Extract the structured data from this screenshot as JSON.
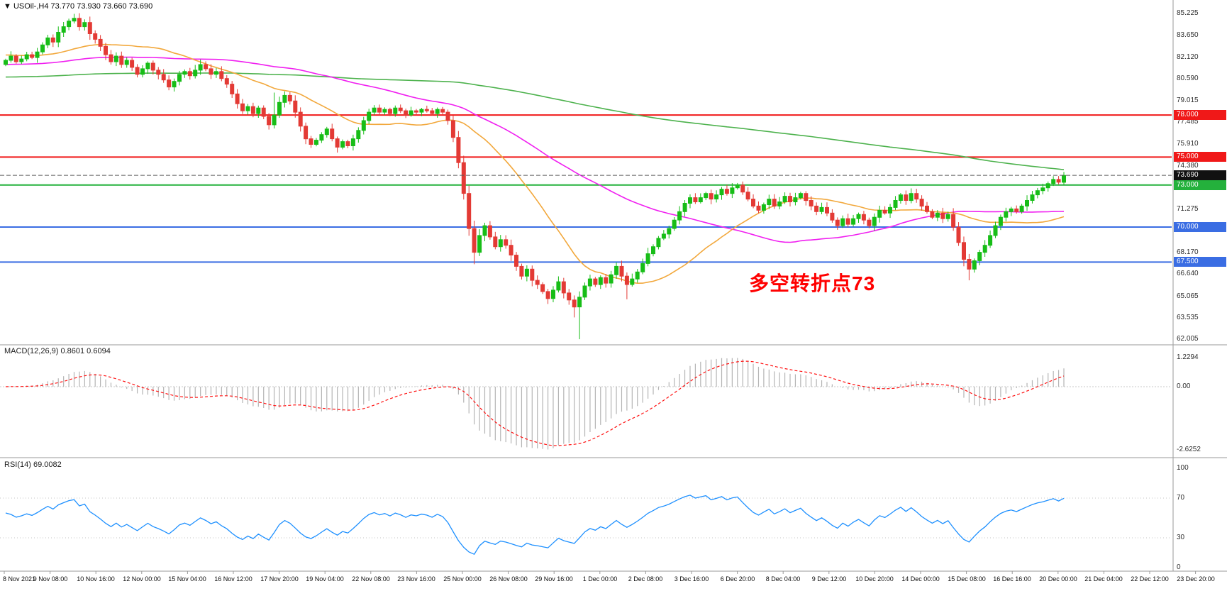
{
  "window": {
    "icon": "▼",
    "title": "USOil-,H4 73.770 73.930 73.660 73.690"
  },
  "indicators": {
    "macd_title": "MACD(12,26,9) 0.8601 0.6094",
    "rsi_title": "RSI(14) 69.0082"
  },
  "annotation": {
    "text": "多空转折点73",
    "color": "#ff0000"
  },
  "chart_data": {
    "type": "candlestick",
    "symbol": "USOil",
    "timeframe": "H4",
    "title": "USOil-,H4 73.770 73.930 73.660 73.690",
    "bull_color": "#17bd17",
    "bear_color": "#e33a35",
    "first_open": 81.6,
    "closes": [
      81.9,
      82.2,
      81.8,
      82.0,
      82.3,
      82.1,
      82.5,
      83.0,
      83.5,
      83.2,
      83.9,
      84.3,
      84.7,
      84.9,
      84.3,
      84.6,
      83.8,
      83.4,
      82.9,
      82.3,
      81.8,
      82.2,
      81.6,
      81.9,
      81.4,
      80.9,
      81.3,
      81.7,
      81.2,
      80.9,
      80.5,
      80.0,
      80.4,
      80.9,
      81.1,
      80.8,
      81.2,
      81.6,
      81.3,
      80.9,
      81.1,
      80.6,
      80.2,
      79.5,
      78.8,
      78.3,
      78.6,
      78.1,
      78.5,
      77.9,
      77.3,
      78.0,
      78.9,
      79.4,
      79.0,
      78.2,
      77.2,
      76.3,
      75.9,
      76.2,
      76.6,
      77.0,
      76.3,
      75.7,
      76.1,
      75.8,
      76.3,
      76.9,
      77.6,
      78.2,
      78.5,
      78.2,
      78.4,
      78.1,
      78.5,
      78.3,
      78.0,
      78.3,
      78.2,
      78.4,
      78.3,
      78.1,
      78.4,
      78.2,
      77.6,
      76.4,
      74.6,
      72.4,
      69.9,
      68.2,
      69.4,
      70.1,
      69.3,
      68.6,
      69.1,
      68.7,
      68.0,
      67.2,
      66.5,
      67.0,
      66.2,
      65.9,
      65.4,
      64.9,
      65.5,
      66.1,
      65.3,
      64.8,
      64.3,
      65.0,
      65.8,
      66.3,
      65.9,
      66.4,
      66.0,
      66.6,
      67.2,
      66.5,
      65.9,
      66.3,
      66.8,
      67.4,
      68.1,
      68.6,
      69.2,
      69.5,
      69.9,
      70.5,
      71.1,
      71.7,
      72.1,
      71.8,
      72.1,
      72.4,
      72.0,
      72.3,
      72.7,
      72.4,
      72.8,
      73.0,
      72.5,
      72.0,
      71.5,
      71.2,
      71.6,
      72.0,
      71.5,
      71.8,
      72.2,
      71.8,
      72.1,
      72.4,
      71.9,
      71.5,
      71.1,
      71.4,
      71.0,
      70.5,
      70.1,
      70.6,
      70.2,
      70.6,
      70.9,
      70.5,
      70.1,
      70.7,
      71.2,
      71.0,
      71.4,
      71.9,
      72.3,
      71.9,
      72.4,
      72.0,
      71.5,
      71.1,
      70.7,
      71.0,
      70.6,
      70.9,
      70.0,
      68.9,
      67.7,
      67.0,
      67.6,
      68.2,
      68.7,
      69.4,
      70.1,
      70.7,
      71.1,
      71.3,
      71.1,
      71.5,
      71.9,
      72.3,
      72.6,
      72.8,
      73.1,
      73.4,
      73.2,
      73.69
    ],
    "wick_overrides": {
      "13": {
        "high": 85.22
      },
      "51": {
        "high": 79.6
      },
      "89": {
        "low": 67.35
      },
      "108": {
        "low": 63.55
      },
      "109": {
        "low": 62.0
      },
      "118": {
        "low": 64.85
      },
      "183": {
        "low": 66.2
      },
      "201": {
        "high": 73.93
      }
    },
    "price_axis": {
      "min": 61.8,
      "max": 85.7,
      "tick_labels": [
        "85.225",
        "83.650",
        "82.120",
        "80.590",
        "79.015",
        "77.485",
        "75.910",
        "74.380",
        "71.275",
        "69.745",
        "68.170",
        "66.640",
        "65.065",
        "63.535",
        "62.005"
      ]
    },
    "moving_averages": [
      {
        "name": "ma-long",
        "period": 200,
        "seed": 80.7,
        "color": "#4db24d"
      },
      {
        "name": "ma-medium",
        "period": 62,
        "seed": 81.6,
        "color": "#f020f0"
      },
      {
        "name": "ma-fast",
        "period": 24,
        "seed": 82.3,
        "color": "#f2a83c"
      }
    ],
    "levels": [
      {
        "value": 78.0,
        "label": "78.000",
        "color": "#f01818",
        "tag": true
      },
      {
        "value": 75.0,
        "label": "75.000",
        "color": "#f01818",
        "tag": true
      },
      {
        "value": 73.0,
        "label": "73.000",
        "color": "#24b13c",
        "tag": true
      },
      {
        "value": 70.0,
        "label": "70.000",
        "color": "#3a6de3",
        "tag": true
      },
      {
        "value": 67.5,
        "label": "67.500",
        "color": "#3a6de3",
        "tag": true
      }
    ],
    "current_price": {
      "value": 73.69,
      "label": "73.690",
      "line_color": "#5a5a5a",
      "tag_bg": "#111111"
    },
    "macd": {
      "fast": 12,
      "slow": 26,
      "signal": 9,
      "main_value": 0.8601,
      "signal_value": 0.6094,
      "histogram_color": "#b4b4b4",
      "signal_color": "#ff1010",
      "axis_labels": [
        "1.2294",
        "0.00",
        "-2.6252"
      ]
    },
    "rsi": {
      "period": 14,
      "value": 69.0082,
      "color": "#1e90ff",
      "levels": [
        70,
        30
      ],
      "axis_labels": [
        "100",
        "70",
        "30",
        "0"
      ],
      "axis_values": [
        100,
        70,
        30,
        0
      ]
    },
    "x_labels": [
      "8 Nov 2021",
      "9 Nov 08:00",
      "10 Nov 16:00",
      "12 Nov 00:00",
      "15 Nov 04:00",
      "16 Nov 12:00",
      "17 Nov 20:00",
      "19 Nov 04:00",
      "22 Nov 08:00",
      "23 Nov 16:00",
      "25 Nov 00:00",
      "26 Nov 08:00",
      "29 Nov 16:00",
      "1 Dec 00:00",
      "2 Dec 08:00",
      "3 Dec 16:00",
      "6 Dec 20:00",
      "8 Dec 04:00",
      "9 Dec 12:00",
      "10 Dec 20:00",
      "14 Dec 00:00",
      "15 Dec 08:00",
      "16 Dec 16:00",
      "20 Dec 00:00",
      "21 Dec 04:00",
      "22 Dec 12:00",
      "23 Dec 20:00"
    ]
  }
}
